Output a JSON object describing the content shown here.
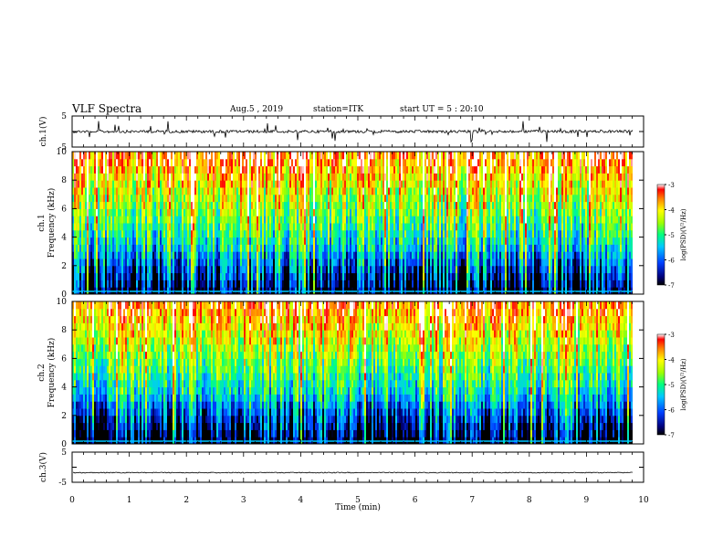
{
  "header": {
    "title": "VLF Spectra",
    "date": "Aug.5 , 2019",
    "station": "station=ITK",
    "start": "start UT = 5 : 20:10"
  },
  "chart_data": [
    {
      "type": "line",
      "panel": "ch1-waveform",
      "ylabel": "ch.1(V)",
      "ylim": [
        -5,
        5
      ],
      "yticks": [
        "5",
        "-5"
      ],
      "xlim": [
        0,
        10
      ],
      "baseline": 0,
      "description_level": "noise around baseline with frequent spikes"
    },
    {
      "type": "heatmap",
      "panel": "ch1-spectrogram",
      "ylabel": "ch.1\nFrequency (kHz)",
      "ylim": [
        0,
        10
      ],
      "yticks": [
        "0",
        "2",
        "4",
        "6",
        "8",
        "10"
      ],
      "xlim": [
        0,
        10
      ],
      "colorbar": {
        "ticks": [
          "-3",
          "-4",
          "-5",
          "-6",
          "-7"
        ],
        "label": "log(PSD)(V²/Hz)",
        "range": [
          -7,
          -3
        ]
      }
    },
    {
      "type": "heatmap",
      "panel": "ch2-spectrogram",
      "ylabel": "ch.2\nFrequency (kHz)",
      "ylim": [
        0,
        10
      ],
      "yticks": [
        "0",
        "2",
        "4",
        "6",
        "8",
        "10"
      ],
      "xlim": [
        0,
        10
      ],
      "colorbar": {
        "ticks": [
          "-3",
          "-4",
          "-5",
          "-6",
          "-7"
        ],
        "label": "log(PSD)(V²/Hz)",
        "range": [
          -7,
          -3
        ]
      }
    },
    {
      "type": "line",
      "panel": "ch3-waveform",
      "ylabel": "ch.3(V)",
      "ylim": [
        -5,
        5
      ],
      "yticks": [
        "5",
        "-5"
      ],
      "xlim": [
        0,
        10
      ],
      "baseline": -1.8
    }
  ],
  "xaxis": {
    "label": "Time (min)",
    "ticks": [
      "0",
      "1",
      "2",
      "3",
      "4",
      "5",
      "6",
      "7",
      "8",
      "9",
      "10"
    ]
  },
  "colors": {
    "background": "#ffffff",
    "axis": "#000000",
    "trace": "#000000"
  }
}
